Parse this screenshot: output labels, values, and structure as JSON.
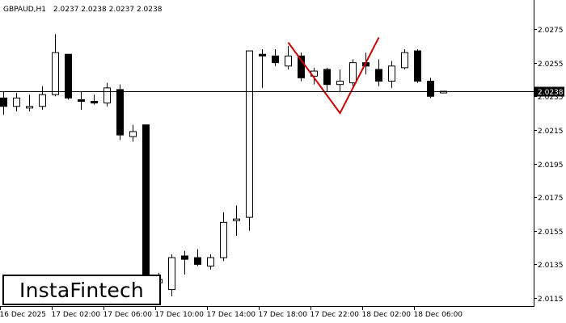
{
  "header": {
    "symbol": "GBPAUD,H1",
    "ohlc": "2.0237 2.0238 2.0237 2.0238"
  },
  "logo": {
    "text": "InstaFintech"
  },
  "colors": {
    "background": "#ffffff",
    "candle_up": "#ffffff",
    "candle_down": "#000000",
    "pattern_line": "#cc0000",
    "price_line": "#000000",
    "price_label_bg": "#000000",
    "price_label_text": "#ffffff"
  },
  "chart_data": {
    "type": "candlestick",
    "title": "GBPAUD,H1  2.0237 2.0238 2.0237 2.0238",
    "current_price": 2.0238,
    "current_price_label": "2.0238",
    "y_ticks": [
      2.0275,
      2.0255,
      2.0235,
      2.0215,
      2.0195,
      2.0175,
      2.0155,
      2.0135,
      2.0115
    ],
    "y_tick_labels": [
      "2.0275",
      "2.0255",
      "2.0235",
      "2.0215",
      "2.0195",
      "2.0175",
      "2.0155",
      "2.0135",
      "2.0115"
    ],
    "ylim": [
      2.0107,
      2.0287
    ],
    "x_tick_labels": [
      {
        "label": "16 Dec 2025",
        "index": 0
      },
      {
        "label": "17 Dec 02:00",
        "index": 4
      },
      {
        "label": "17 Dec 06:00",
        "index": 8
      },
      {
        "label": "17 Dec 10:00",
        "index": 12
      },
      {
        "label": "17 Dec 14:00",
        "index": 16
      },
      {
        "label": "17 Dec 18:00",
        "index": 20
      },
      {
        "label": "17 Dec 22:00",
        "index": 24
      },
      {
        "label": "18 Dec 02:00",
        "index": 28
      },
      {
        "label": "18 Dec 06:00",
        "index": 32
      }
    ],
    "candles": [
      {
        "o": 2.0234,
        "h": 2.0238,
        "l": 2.0224,
        "c": 2.0229
      },
      {
        "o": 2.0229,
        "h": 2.0237,
        "l": 2.0226,
        "c": 2.0234
      },
      {
        "o": 2.0228,
        "h": 2.0236,
        "l": 2.0226,
        "c": 2.0229
      },
      {
        "o": 2.0229,
        "h": 2.0241,
        "l": 2.0227,
        "c": 2.0236
      },
      {
        "o": 2.0236,
        "h": 2.0272,
        "l": 2.0235,
        "c": 2.0261
      },
      {
        "o": 2.026,
        "h": 2.026,
        "l": 2.0233,
        "c": 2.0234
      },
      {
        "o": 2.0233,
        "h": 2.0238,
        "l": 2.0227,
        "c": 2.0232
      },
      {
        "o": 2.0232,
        "h": 2.0236,
        "l": 2.023,
        "c": 2.0231
      },
      {
        "o": 2.0231,
        "h": 2.0243,
        "l": 2.0229,
        "c": 2.024
      },
      {
        "o": 2.0239,
        "h": 2.0242,
        "l": 2.0209,
        "c": 2.0212
      },
      {
        "o": 2.0211,
        "h": 2.0218,
        "l": 2.0208,
        "c": 2.0214
      },
      {
        "o": 2.0218,
        "h": 2.0218,
        "l": 2.0121,
        "c": 2.0124
      },
      {
        "o": 2.0124,
        "h": 2.013,
        "l": 2.0116,
        "c": 2.0126
      },
      {
        "o": 2.012,
        "h": 2.0141,
        "l": 2.0116,
        "c": 2.0139
      },
      {
        "o": 2.014,
        "h": 2.0143,
        "l": 2.0129,
        "c": 2.0138
      },
      {
        "o": 2.0139,
        "h": 2.0144,
        "l": 2.0134,
        "c": 2.0135
      },
      {
        "o": 2.0134,
        "h": 2.0141,
        "l": 2.0132,
        "c": 2.0139
      },
      {
        "o": 2.0139,
        "h": 2.0166,
        "l": 2.0137,
        "c": 2.016
      },
      {
        "o": 2.0161,
        "h": 2.017,
        "l": 2.0152,
        "c": 2.0162
      },
      {
        "o": 2.0163,
        "h": 2.0262,
        "l": 2.0155,
        "c": 2.0262
      },
      {
        "o": 2.026,
        "h": 2.0263,
        "l": 2.024,
        "c": 2.0259
      },
      {
        "o": 2.0259,
        "h": 2.0263,
        "l": 2.0253,
        "c": 2.0255
      },
      {
        "o": 2.0253,
        "h": 2.0265,
        "l": 2.0251,
        "c": 2.0259
      },
      {
        "o": 2.0259,
        "h": 2.0261,
        "l": 2.0244,
        "c": 2.0246
      },
      {
        "o": 2.0247,
        "h": 2.0252,
        "l": 2.0242,
        "c": 2.025
      },
      {
        "o": 2.0251,
        "h": 2.0252,
        "l": 2.0238,
        "c": 2.0242
      },
      {
        "o": 2.0242,
        "h": 2.0251,
        "l": 2.0238,
        "c": 2.0244
      },
      {
        "o": 2.0243,
        "h": 2.0257,
        "l": 2.0241,
        "c": 2.0255
      },
      {
        "o": 2.0255,
        "h": 2.0261,
        "l": 2.0248,
        "c": 2.0253
      },
      {
        "o": 2.0251,
        "h": 2.0257,
        "l": 2.0241,
        "c": 2.0244
      },
      {
        "o": 2.0244,
        "h": 2.0256,
        "l": 2.024,
        "c": 2.0253
      },
      {
        "o": 2.0252,
        "h": 2.0263,
        "l": 2.0251,
        "c": 2.0261
      },
      {
        "o": 2.0262,
        "h": 2.0263,
        "l": 2.0243,
        "c": 2.0244
      },
      {
        "o": 2.0244,
        "h": 2.0246,
        "l": 2.0234,
        "c": 2.0235
      },
      {
        "o": 2.0237,
        "h": 2.0238,
        "l": 2.0237,
        "c": 2.0238
      }
    ],
    "pattern": {
      "name": "double top",
      "points": [
        {
          "index": 22,
          "price": 2.0267
        },
        {
          "index": 26,
          "price": 2.0225
        },
        {
          "index": 29,
          "price": 2.027
        }
      ]
    }
  }
}
